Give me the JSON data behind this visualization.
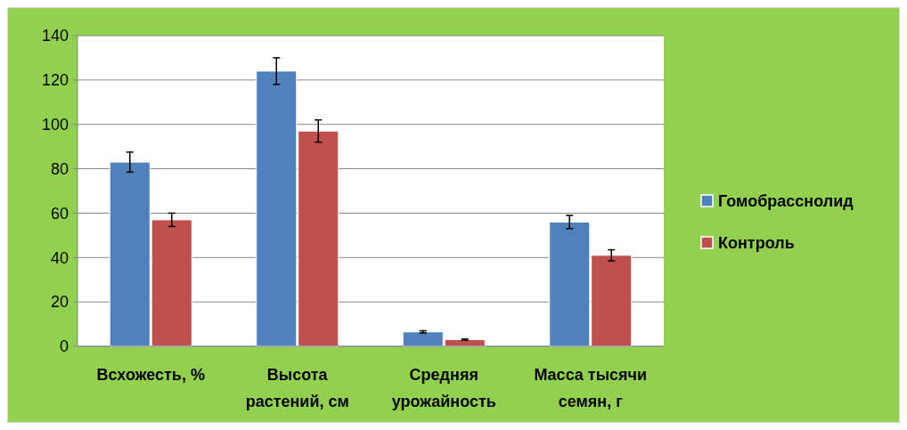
{
  "chart_data": {
    "type": "bar",
    "categories": [
      "Всхожесть, %",
      "Высота растений, см",
      "Средняя урожайность",
      "Масса тысячи семян, г"
    ],
    "series": [
      {
        "name": "Гомобрасснолид",
        "color": "#4f81bd",
        "values": [
          83,
          124,
          6.5,
          56
        ],
        "errors": [
          4.5,
          6,
          0.5,
          3
        ]
      },
      {
        "name": "Контроль",
        "color": "#c0504d",
        "values": [
          57,
          97,
          3,
          41
        ],
        "errors": [
          3,
          5,
          0.3,
          2.5
        ]
      }
    ],
    "ylim": [
      0,
      140
    ],
    "yticks": [
      0,
      20,
      40,
      60,
      80,
      100,
      120,
      140
    ],
    "grid": "y",
    "legend": "right"
  }
}
